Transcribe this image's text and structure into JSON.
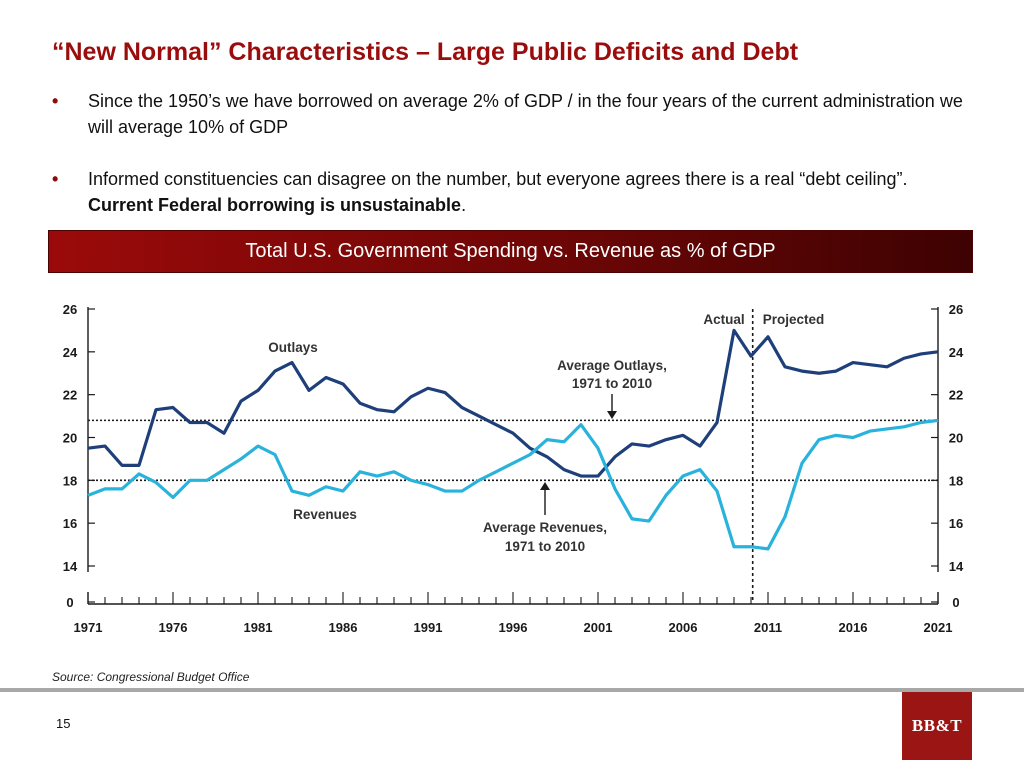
{
  "slide": {
    "title": "“New Normal” Characteristics – Large Public Deficits and Debt",
    "bullets": [
      {
        "text": "Since the 1950’s we have borrowed on average 2% of GDP / in the four years of the current administration we will average 10% of GDP"
      },
      {
        "text": "Informed constituencies can disagree on the number, but everyone agrees there is a real “debt ceiling”. ",
        "bold": "Current Federal borrowing is unsustainable",
        "tail": "."
      }
    ],
    "chart_banner": "Total U.S. Government Spending vs. Revenue as % of GDP",
    "source": "Source: Congressional Budget Office",
    "page_number": "15",
    "logo_text": "BB&T"
  },
  "colors": {
    "title": "#9b0d0d",
    "banner": "#8a0808",
    "outlays": "#1f3f7a",
    "revenues": "#29b3dc",
    "logo": "#9c1515"
  },
  "chart_data": {
    "type": "line",
    "x_ticks": [
      "1971",
      "1976",
      "1981",
      "1986",
      "1991",
      "1996",
      "2001",
      "2006",
      "2011",
      "2016",
      "2021"
    ],
    "y_ticks": [
      "26",
      "24",
      "22",
      "20",
      "18",
      "16",
      "14",
      "0"
    ],
    "ylim": [
      14,
      26
    ],
    "axis_break": "y-axis jumps from 14 to 0",
    "x": [
      1971,
      1972,
      1973,
      1974,
      1975,
      1976,
      1977,
      1978,
      1979,
      1980,
      1981,
      1982,
      1983,
      1984,
      1985,
      1986,
      1987,
      1988,
      1989,
      1990,
      1991,
      1992,
      1993,
      1994,
      1995,
      1996,
      1997,
      1998,
      1999,
      2000,
      2001,
      2002,
      2003,
      2004,
      2005,
      2006,
      2007,
      2008,
      2009,
      2010,
      2011,
      2012,
      2013,
      2014,
      2015,
      2016,
      2017,
      2018,
      2019,
      2020,
      2021
    ],
    "series": [
      {
        "name": "Outlays",
        "values": [
          19.5,
          19.6,
          18.7,
          18.7,
          21.3,
          21.4,
          20.7,
          20.7,
          20.2,
          21.7,
          22.2,
          23.1,
          23.5,
          22.2,
          22.8,
          22.5,
          21.6,
          21.3,
          21.2,
          21.9,
          22.3,
          22.1,
          21.4,
          21.0,
          20.6,
          20.2,
          19.5,
          19.1,
          18.5,
          18.2,
          18.2,
          19.1,
          19.7,
          19.6,
          19.9,
          20.1,
          19.6,
          20.7,
          25.0,
          23.8,
          24.7,
          23.3,
          23.1,
          23.0,
          23.1,
          23.5,
          23.4,
          23.3,
          23.7,
          23.9,
          24.0
        ],
        "color": "#1f3f7a"
      },
      {
        "name": "Revenues",
        "values": [
          17.3,
          17.6,
          17.6,
          18.3,
          17.9,
          17.2,
          18.0,
          18.0,
          18.5,
          19.0,
          19.6,
          19.2,
          17.5,
          17.3,
          17.7,
          17.5,
          18.4,
          18.2,
          18.4,
          18.0,
          17.8,
          17.5,
          17.5,
          18.0,
          18.4,
          18.8,
          19.2,
          19.9,
          19.8,
          20.6,
          19.5,
          17.6,
          16.2,
          16.1,
          17.3,
          18.2,
          18.5,
          17.5,
          14.9,
          14.9,
          14.8,
          16.3,
          18.8,
          19.9,
          20.1,
          20.0,
          20.3,
          20.4,
          20.5,
          20.7,
          20.8
        ],
        "color": "#29b3dc"
      }
    ],
    "reference_lines": [
      {
        "label": "Average Outlays, 1971 to 2010",
        "value": 20.8
      },
      {
        "label": "Average Revenues, 1971 to 2010",
        "value": 18.0
      }
    ],
    "divider_year": 2010,
    "region_labels": [
      "Actual",
      "Projected"
    ],
    "annotations": {
      "outlays_label": "Outlays",
      "revenues_label": "Revenues",
      "avg_outlays_lines": [
        "Average Outlays,",
        "1971 to 2010"
      ],
      "avg_revenues_lines": [
        "Average Revenues,",
        "1971 to 2010"
      ]
    }
  }
}
